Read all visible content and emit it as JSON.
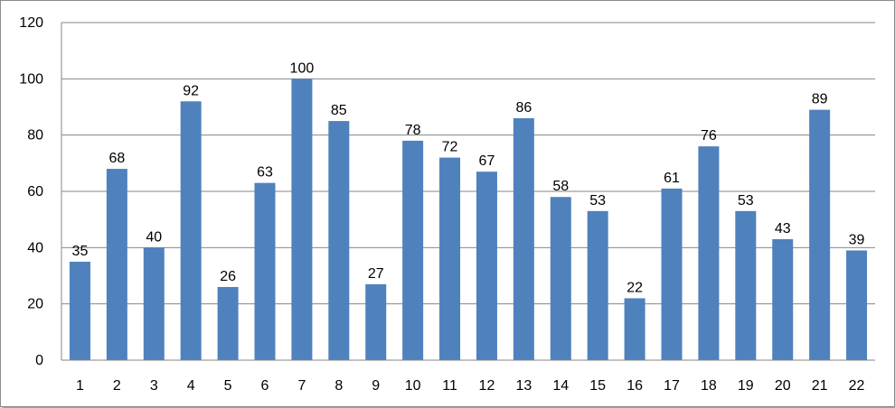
{
  "chart_data": {
    "type": "bar",
    "title": "",
    "xlabel": "",
    "ylabel": "",
    "categories": [
      "1",
      "2",
      "3",
      "4",
      "5",
      "6",
      "7",
      "8",
      "9",
      "10",
      "11",
      "12",
      "13",
      "14",
      "15",
      "16",
      "17",
      "18",
      "19",
      "20",
      "21",
      "22"
    ],
    "values": [
      35,
      68,
      40,
      92,
      26,
      63,
      100,
      85,
      27,
      78,
      72,
      67,
      86,
      58,
      53,
      22,
      61,
      76,
      53,
      43,
      89,
      39
    ],
    "ylim": [
      0,
      120
    ],
    "yticks": [
      0,
      20,
      40,
      60,
      80,
      100,
      120
    ],
    "grid": true,
    "legend": "none",
    "data_labels": true,
    "bar_color": "#4f81bd",
    "grid_color": "#868686"
  }
}
